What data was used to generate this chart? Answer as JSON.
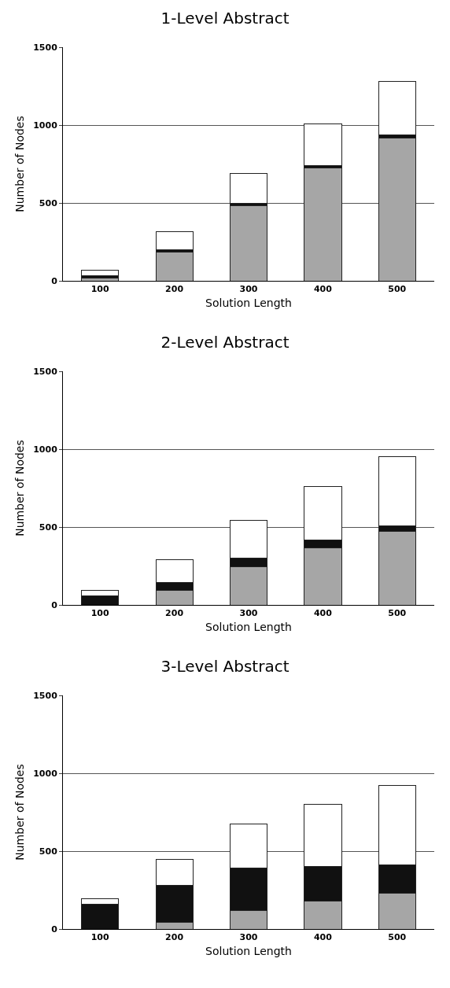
{
  "chart_data": [
    {
      "type": "bar",
      "title": "1-Level Abstract",
      "xlabel": "Solution Length",
      "ylabel": "Number of Nodes",
      "categories": [
        "100",
        "200",
        "300",
        "400",
        "500"
      ],
      "stacked": true,
      "grid": "y",
      "ylim": [
        0,
        1500
      ],
      "yticks": [
        0,
        500,
        1000,
        1500
      ],
      "series": [
        {
          "color": "#a6a6a6",
          "values": [
            20,
            185,
            480,
            725,
            915
          ]
        },
        {
          "color": "#111111",
          "values": [
            15,
            15,
            15,
            15,
            20
          ]
        },
        {
          "color": "#ffffff",
          "values": [
            35,
            115,
            195,
            270,
            345
          ]
        }
      ]
    },
    {
      "type": "bar",
      "title": "2-Level Abstract",
      "xlabel": "Solution Length",
      "ylabel": "Number of Nodes",
      "categories": [
        "100",
        "200",
        "300",
        "400",
        "500"
      ],
      "stacked": true,
      "grid": "y",
      "ylim": [
        0,
        1500
      ],
      "yticks": [
        0,
        500,
        1000,
        1500
      ],
      "series": [
        {
          "color": "#a6a6a6",
          "values": [
            null,
            95,
            245,
            365,
            470
          ]
        },
        {
          "color": "#111111",
          "values": [
            60,
            50,
            55,
            50,
            40
          ]
        },
        {
          "color": "#ffffff",
          "values": [
            35,
            145,
            245,
            345,
            440
          ]
        }
      ]
    },
    {
      "type": "bar",
      "title": "3-Level Abstract",
      "xlabel": "Solution Length",
      "ylabel": "Number of Nodes",
      "categories": [
        "100",
        "200",
        "300",
        "400",
        "500"
      ],
      "stacked": true,
      "grid": "y",
      "ylim": [
        0,
        1500
      ],
      "yticks": [
        0,
        500,
        1000,
        1500
      ],
      "series": [
        {
          "color": "#a6a6a6",
          "values": [
            0,
            45,
            120,
            180,
            230
          ]
        },
        {
          "color": "#111111",
          "values": [
            160,
            235,
            270,
            220,
            180
          ]
        },
        {
          "color": "#ffffff",
          "values": [
            35,
            165,
            285,
            400,
            510
          ]
        }
      ]
    }
  ]
}
